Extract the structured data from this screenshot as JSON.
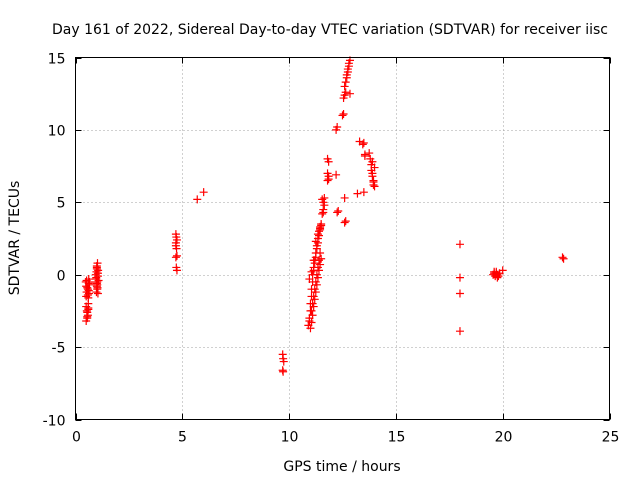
{
  "chart_data": {
    "type": "scatter",
    "title": "Day 161 of 2022, Sidereal Day-to-day VTEC variation (SDTVAR) for receiver iisc",
    "xlabel": "GPS time / hours",
    "ylabel": "SDTVAR / TECUs",
    "xlim": [
      0,
      25
    ],
    "ylim": [
      -10,
      15
    ],
    "xticks": [
      0,
      5,
      10,
      15,
      20,
      25
    ],
    "yticks": [
      -10,
      -5,
      0,
      5,
      10,
      15
    ],
    "xtick_labels": [
      "0",
      "5",
      "10",
      "15",
      "20",
      "25"
    ],
    "ytick_labels": [
      "-10",
      "-5",
      "0",
      "5",
      "10",
      "15"
    ],
    "grid": true,
    "legend": "none",
    "marker": "+",
    "series": [
      {
        "name": "SDTVAR",
        "color": "#ff0000",
        "x": [
          0.48,
          0.5,
          0.52,
          0.5,
          0.53,
          0.55,
          0.5,
          0.52,
          0.55,
          0.58,
          0.6,
          0.62,
          0.58,
          0.55,
          0.6,
          0.63,
          0.65,
          0.62,
          0.6,
          0.58,
          0.62,
          0.65,
          0.6,
          0.55,
          0.5,
          0.95,
          0.97,
          1.0,
          1.02,
          1.05,
          0.98,
          1.0,
          1.03,
          1.06,
          1.0,
          0.97,
          1.02,
          1.05,
          1.08,
          1.0,
          0.98,
          1.03,
          1.05,
          1.0,
          1.02,
          4.7,
          4.72,
          4.75,
          4.7,
          4.73,
          4.75,
          4.7,
          4.72,
          4.75,
          4.7,
          5.7,
          6.0,
          9.7,
          9.72,
          9.75,
          9.7,
          9.72,
          10.9,
          10.95,
          11.0,
          11.05,
          11.1,
          11.15,
          11.2,
          11.25,
          11.3,
          11.35,
          11.4,
          11.45,
          11.5,
          10.95,
          11.0,
          11.05,
          11.1,
          11.15,
          11.2,
          11.25,
          11.3,
          11.35,
          11.4,
          11.45,
          11.5,
          11.0,
          11.05,
          11.1,
          11.15,
          11.2,
          11.25,
          11.3,
          11.35,
          11.4,
          11.45,
          11.5,
          11.05,
          11.1,
          11.15,
          11.2,
          11.25,
          11.3,
          11.35,
          11.4,
          11.45,
          10.95,
          11.05,
          11.15,
          11.25,
          11.35,
          11.45,
          11.55,
          11.6,
          11.65,
          11.6,
          11.55,
          11.6,
          11.65,
          11.8,
          11.85,
          11.8,
          11.85,
          11.8,
          11.85,
          12.2,
          12.25,
          12.2,
          12.25,
          12.3,
          12.5,
          12.55,
          12.55,
          12.6,
          12.65,
          12.6,
          12.65,
          12.7,
          12.7,
          12.75,
          12.75,
          12.8,
          12.8,
          12.85,
          12.85,
          12.6,
          12.65,
          12.6,
          13.2,
          13.3,
          13.45,
          13.5,
          13.55,
          13.5,
          13.55,
          13.75,
          13.8,
          13.85,
          13.85,
          13.9,
          13.9,
          13.95,
          13.95,
          14.0,
          14.0,
          13.9,
          13.95,
          18.0,
          18.0,
          18.0,
          18.0,
          19.55,
          19.6,
          19.65,
          19.7,
          19.75,
          19.8,
          19.7,
          19.6,
          19.75,
          19.85,
          20.0,
          22.8,
          22.85
        ],
        "y": [
          -0.5,
          -0.8,
          -1.2,
          -2.2,
          -2.5,
          -3.0,
          -3.2,
          -0.4,
          -0.9,
          -1.4,
          -2.3,
          -0.6,
          -1.0,
          -2.6,
          -2.0,
          -1.3,
          -0.7,
          -0.3,
          -1.6,
          -2.8,
          -1.1,
          -0.5,
          -2.4,
          -2.9,
          -1.5,
          0.0,
          -0.3,
          -0.6,
          -1.0,
          -1.3,
          0.2,
          0.5,
          0.8,
          0.3,
          -0.8,
          -0.2,
          -0.5,
          0.1,
          -0.4,
          0.6,
          -1.2,
          -0.9,
          -0.1,
          0.4,
          -0.7,
          2.8,
          2.6,
          2.4,
          2.0,
          1.8,
          1.3,
          1.2,
          0.5,
          0.3,
          2.2,
          5.2,
          5.7,
          -5.5,
          -5.8,
          -6.0,
          -6.6,
          -6.7,
          -3.5,
          -3.0,
          -2.0,
          -1.0,
          0.0,
          0.5,
          1.0,
          1.5,
          2.0,
          2.5,
          3.0,
          3.3,
          3.5,
          -3.2,
          -2.5,
          -1.5,
          -0.5,
          0.3,
          0.8,
          1.2,
          1.8,
          2.2,
          2.7,
          3.1,
          3.4,
          -3.7,
          -3.3,
          -2.8,
          -2.2,
          -1.7,
          -1.2,
          -0.7,
          -0.2,
          0.3,
          0.7,
          1.1,
          -2.5,
          -2.0,
          -1.5,
          -1.0,
          -0.5,
          0.0,
          0.5,
          1.0,
          1.5,
          -0.3,
          0.2,
          1.0,
          2.3,
          2.8,
          3.2,
          4.2,
          4.5,
          4.8,
          5.0,
          5.2,
          4.3,
          5.3,
          6.5,
          6.8,
          7.0,
          7.8,
          8.0,
          6.6,
          10.0,
          10.2,
          6.9,
          4.3,
          4.4,
          11.0,
          11.1,
          12.2,
          12.4,
          12.6,
          13.0,
          13.3,
          13.6,
          13.8,
          14.0,
          14.2,
          14.4,
          14.6,
          14.8,
          12.5,
          3.6,
          3.7,
          5.3,
          5.6,
          9.2,
          9.0,
          5.7,
          8.2,
          9.1,
          8.3,
          8.4,
          8.0,
          7.6,
          7.2,
          7.0,
          6.8,
          6.5,
          6.2,
          6.1,
          7.4,
          7.8,
          6.4,
          2.1,
          -0.2,
          -1.3,
          -3.9,
          0.0,
          0.1,
          -0.1,
          0.2,
          0.0,
          -0.1,
          0.1,
          0.2,
          -0.2,
          0.1,
          0.3,
          1.2,
          1.1
        ]
      }
    ]
  }
}
